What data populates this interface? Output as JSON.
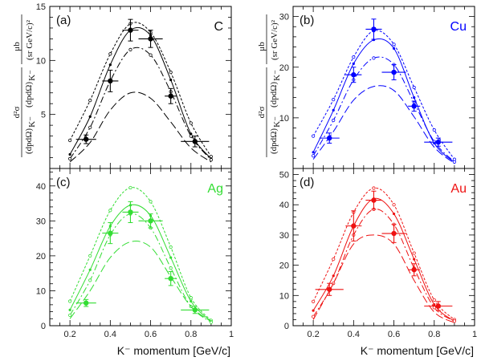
{
  "figure": {
    "xlabel": "K⁻ momentum [GeV/c]",
    "ylabel_lines": [
      "d²σ",
      "(dpdΩ)",
      "(dpdΩ)",
      "μb",
      "(sr GeV/c)²"
    ],
    "ylabel_subscripts": [
      "K⁻",
      "K⁻"
    ]
  },
  "chart_data": [
    {
      "type": "scatter",
      "panel_tag": "(a)",
      "title": "C",
      "color": "#000000",
      "xlim": [
        0.1,
        1.0
      ],
      "ylim": [
        0,
        15
      ],
      "xticks": [
        0.2,
        0.4,
        0.6,
        0.8,
        1
      ],
      "xtick_labels": [
        "0.2",
        "0.4",
        "0.6",
        "0.8",
        "1"
      ],
      "yticks": [
        5,
        10,
        15
      ],
      "ytick_labels": [
        "5",
        "10",
        "15"
      ],
      "grid": false,
      "data": {
        "x": [
          0.28,
          0.4,
          0.5,
          0.6,
          0.7,
          0.82
        ],
        "y": [
          2.7,
          8.1,
          12.8,
          12.0,
          6.7,
          2.5
        ],
        "xerr": [
          0.05,
          0.04,
          0.04,
          0.06,
          0.03,
          0.07
        ],
        "yerr": [
          0.4,
          1.0,
          1.0,
          0.8,
          0.7,
          0.5
        ]
      },
      "curves": [
        {
          "style": "short-dash",
          "x": [
            0.2,
            0.3,
            0.4,
            0.5,
            0.6,
            0.7,
            0.8,
            0.9
          ],
          "y": [
            2.6,
            6.3,
            10.6,
            13.4,
            12.6,
            8.9,
            4.2,
            1.1
          ]
        },
        {
          "style": "solid",
          "x": [
            0.2,
            0.3,
            0.4,
            0.5,
            0.6,
            0.7,
            0.8,
            0.9
          ],
          "y": [
            1.3,
            4.8,
            9.6,
            12.8,
            12.3,
            8.2,
            3.2,
            0.9
          ]
        },
        {
          "style": "dash-dot",
          "x": [
            0.2,
            0.3,
            0.4,
            0.5,
            0.6,
            0.7,
            0.8,
            0.9
          ],
          "y": [
            0.9,
            3.8,
            8.1,
            11.0,
            10.5,
            7.1,
            3.0,
            0.8
          ]
        },
        {
          "style": "long-dash",
          "x": [
            0.2,
            0.3,
            0.4,
            0.5,
            0.6,
            0.7,
            0.8,
            0.9
          ],
          "y": [
            0.6,
            2.4,
            5.4,
            7.0,
            6.5,
            4.3,
            1.9,
            0.6
          ]
        }
      ]
    },
    {
      "type": "scatter",
      "panel_tag": "(b)",
      "title": "Cu",
      "color": "#0000ff",
      "xlim": [
        0.1,
        1.0
      ],
      "ylim": [
        0,
        32
      ],
      "xticks": [
        0.2,
        0.4,
        0.6,
        0.8,
        1
      ],
      "xtick_labels": [
        "0.2",
        "0.4",
        "0.6",
        "0.8",
        "1"
      ],
      "yticks": [
        10,
        20,
        30
      ],
      "ytick_labels": [
        "10",
        "20",
        "30"
      ],
      "grid": false,
      "data": {
        "x": [
          0.28,
          0.4,
          0.5,
          0.6,
          0.7,
          0.82
        ],
        "y": [
          6.0,
          18.5,
          27.5,
          19.0,
          12.3,
          5.2
        ],
        "xerr": [
          0.05,
          0.04,
          0.04,
          0.06,
          0.03,
          0.07
        ],
        "yerr": [
          1.0,
          1.5,
          2.0,
          1.5,
          1.0,
          0.8
        ]
      },
      "curves": [
        {
          "style": "short-dash",
          "x": [
            0.2,
            0.3,
            0.4,
            0.5,
            0.6,
            0.7,
            0.8,
            0.9
          ],
          "y": [
            6.4,
            13.6,
            22.0,
            27.2,
            24.5,
            16.0,
            7.6,
            1.8
          ]
        },
        {
          "style": "solid",
          "x": [
            0.2,
            0.3,
            0.4,
            0.5,
            0.6,
            0.7,
            0.8,
            0.9
          ],
          "y": [
            3.2,
            11.5,
            20.7,
            25.4,
            23.7,
            14.0,
            5.0,
            1.2
          ]
        },
        {
          "style": "dash-dot",
          "x": [
            0.2,
            0.3,
            0.4,
            0.5,
            0.6,
            0.7,
            0.8,
            0.9
          ],
          "y": [
            2.5,
            9.5,
            17.5,
            21.8,
            20.5,
            13.0,
            5.3,
            1.3
          ]
        },
        {
          "style": "long-dash",
          "x": [
            0.2,
            0.3,
            0.4,
            0.5,
            0.6,
            0.7,
            0.8,
            0.9
          ],
          "y": [
            1.8,
            7.3,
            13.5,
            16.2,
            15.4,
            10.2,
            4.2,
            1.0
          ]
        }
      ]
    },
    {
      "type": "scatter",
      "panel_tag": "(c)",
      "title": "Ag",
      "color": "#33dd33",
      "xlim": [
        0.1,
        1.0
      ],
      "ylim": [
        0,
        45
      ],
      "xticks": [
        0.2,
        0.4,
        0.6,
        0.8,
        1
      ],
      "xtick_labels": [
        "0.2",
        "0.4",
        "0.6",
        "0.8",
        "1"
      ],
      "yticks": [
        0,
        10,
        20,
        30,
        40
      ],
      "ytick_labels": [
        "0",
        "10",
        "20",
        "30",
        "40"
      ],
      "grid": false,
      "data": {
        "x": [
          0.28,
          0.4,
          0.5,
          0.6,
          0.7,
          0.82
        ],
        "y": [
          6.5,
          26.5,
          32.5,
          30.0,
          13.5,
          4.5
        ],
        "xerr": [
          0.05,
          0.04,
          0.04,
          0.06,
          0.03,
          0.07
        ],
        "yerr": [
          1.0,
          3.0,
          3.0,
          2.0,
          2.0,
          1.0
        ]
      },
      "curves": [
        {
          "style": "short-dash",
          "x": [
            0.2,
            0.3,
            0.4,
            0.5,
            0.6,
            0.7,
            0.8,
            0.9
          ],
          "y": [
            7.0,
            20.0,
            33.0,
            39.5,
            35.5,
            22.5,
            8.0,
            1.5
          ]
        },
        {
          "style": "solid",
          "x": [
            0.2,
            0.3,
            0.4,
            0.5,
            0.6,
            0.7,
            0.8,
            0.9
          ],
          "y": [
            4.5,
            16.0,
            28.5,
            34.5,
            31.5,
            19.5,
            7.0,
            1.2
          ]
        },
        {
          "style": "dash-dot",
          "x": [
            0.2,
            0.3,
            0.4,
            0.5,
            0.6,
            0.7,
            0.8,
            0.9
          ],
          "y": [
            3.0,
            13.0,
            26.0,
            32.0,
            28.0,
            16.5,
            5.5,
            1.0
          ]
        },
        {
          "style": "long-dash",
          "x": [
            0.2,
            0.3,
            0.4,
            0.5,
            0.6,
            0.7,
            0.8,
            0.9
          ],
          "y": [
            2.0,
            10.0,
            19.5,
            24.0,
            22.5,
            14.0,
            5.5,
            1.2
          ]
        }
      ]
    },
    {
      "type": "scatter",
      "panel_tag": "(d)",
      "title": "Au",
      "color": "#ee1111",
      "xlim": [
        0.1,
        1.0
      ],
      "ylim": [
        0,
        52
      ],
      "xticks": [
        0.2,
        0.4,
        0.6,
        0.8,
        1
      ],
      "xtick_labels": [
        "0.2",
        "0.4",
        "0.6",
        "0.8",
        "1"
      ],
      "yticks": [
        0,
        10,
        20,
        30,
        40,
        50
      ],
      "ytick_labels": [
        "0",
        "10",
        "20",
        "30",
        "40",
        "50"
      ],
      "grid": false,
      "data": {
        "x": [
          0.28,
          0.4,
          0.5,
          0.6,
          0.7,
          0.82
        ],
        "y": [
          12.0,
          33.0,
          41.5,
          30.5,
          18.5,
          6.5
        ],
        "xerr": [
          0.07,
          0.04,
          0.04,
          0.06,
          0.03,
          0.07
        ],
        "yerr": [
          2.0,
          5.0,
          3.0,
          3.0,
          2.0,
          1.5
        ]
      },
      "curves": [
        {
          "style": "short-dash",
          "x": [
            0.2,
            0.3,
            0.4,
            0.5,
            0.6,
            0.7,
            0.8,
            0.9
          ],
          "y": [
            8.0,
            22.0,
            37.5,
            45.5,
            40.0,
            24.0,
            8.5,
            2.0
          ]
        },
        {
          "style": "solid",
          "x": [
            0.2,
            0.3,
            0.4,
            0.5,
            0.6,
            0.7,
            0.8,
            0.9
          ],
          "y": [
            5.0,
            16.5,
            33.0,
            42.0,
            37.0,
            22.0,
            7.0,
            1.5
          ]
        },
        {
          "style": "dash-dot",
          "x": [
            0.2,
            0.3,
            0.4,
            0.5,
            0.6,
            0.7,
            0.8,
            0.9
          ],
          "y": [
            3.0,
            14.0,
            30.0,
            38.5,
            33.5,
            19.0,
            6.0,
            1.5
          ]
        },
        {
          "style": "long-dash",
          "x": [
            0.2,
            0.3,
            0.4,
            0.5,
            0.6,
            0.7,
            0.8,
            0.9
          ],
          "y": [
            2.0,
            14.0,
            27.0,
            30.0,
            27.0,
            15.0,
            4.5,
            1.0
          ]
        }
      ]
    }
  ]
}
